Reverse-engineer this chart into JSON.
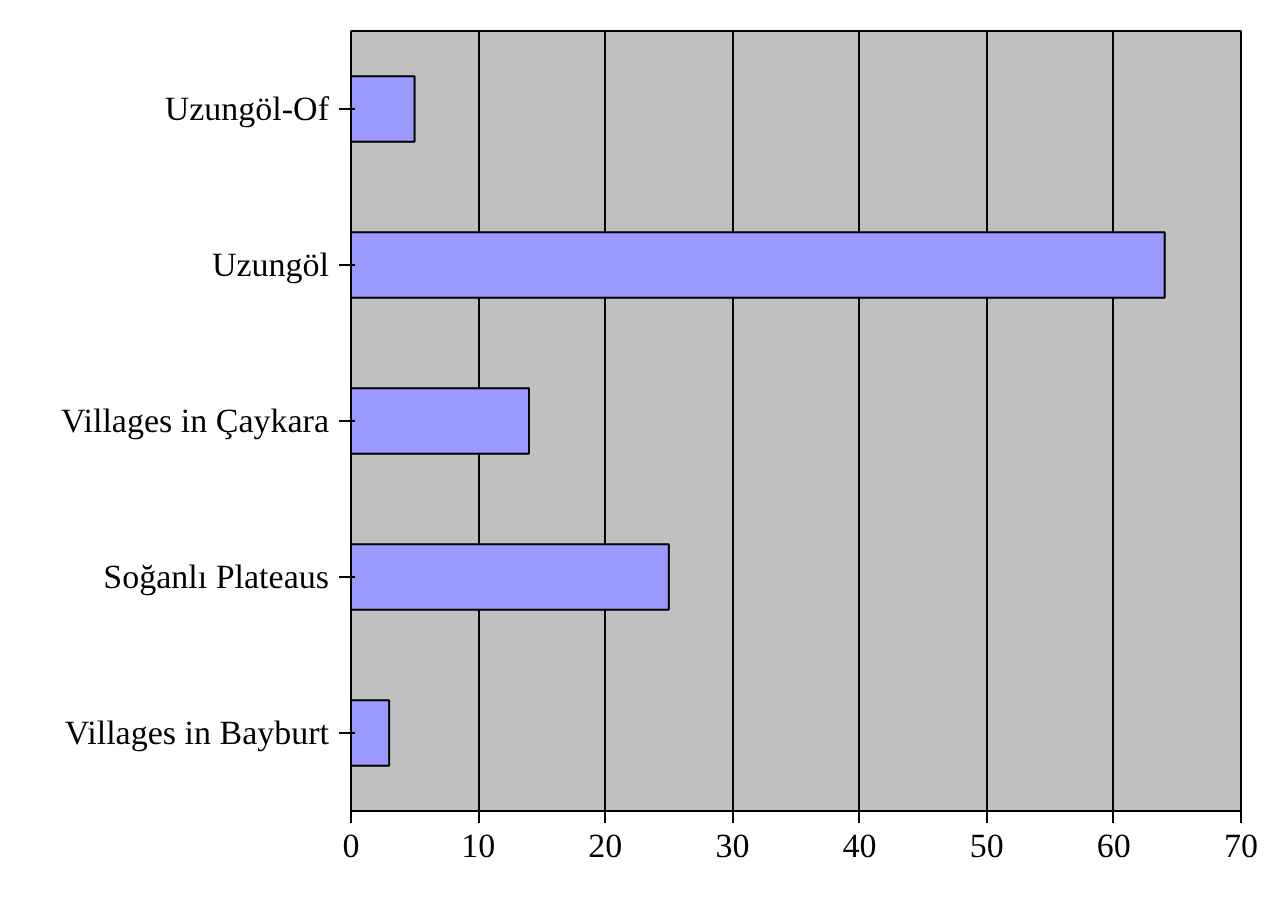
{
  "chart_data": {
    "type": "bar",
    "orientation": "horizontal",
    "categories": [
      "Uzungöl-Of",
      "Uzungöl",
      "Villages in Çaykara",
      "Soğanlı Plateaus",
      "Villages in Bayburt"
    ],
    "values": [
      5,
      64,
      14,
      25,
      3
    ],
    "color": "#9999ff",
    "xlim": [
      0,
      70
    ],
    "xticks": [
      0,
      10,
      20,
      30,
      40,
      50,
      60,
      70
    ],
    "grid": "x"
  }
}
